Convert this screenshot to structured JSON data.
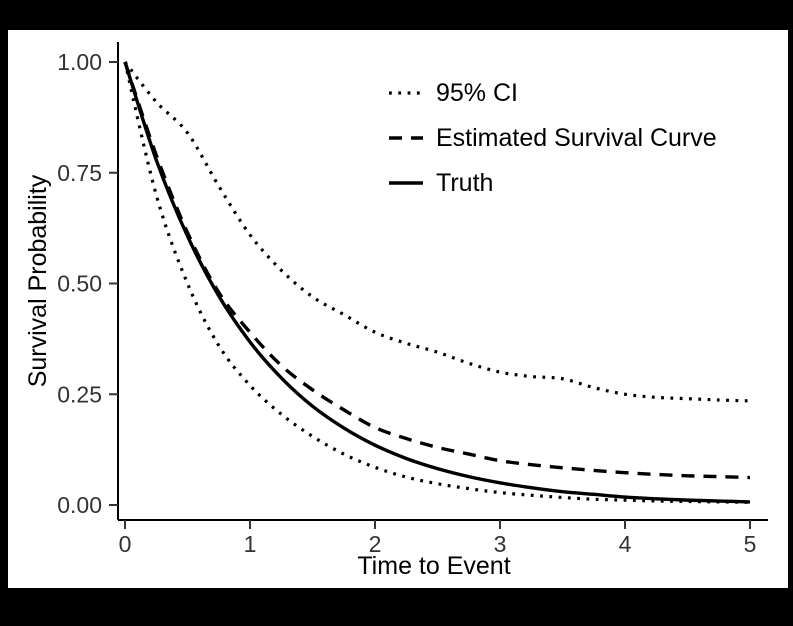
{
  "window": {
    "background": "#000000"
  },
  "chart_data": {
    "type": "line",
    "title": "",
    "xlabel": "Time to Event",
    "ylabel": "Survival Probability",
    "xlim": [
      0,
      5
    ],
    "ylim": [
      0,
      1
    ],
    "grid": false,
    "legend_position": "inside-top-right",
    "line_color": "#000000",
    "axis_text_color": "#333333",
    "x_tick_values": [
      0,
      1,
      2,
      3,
      4,
      5
    ],
    "x_tick_labels": [
      "0",
      "1",
      "2",
      "3",
      "4",
      "5"
    ],
    "y_tick_values": [
      0,
      0.25,
      0.5,
      0.75,
      1
    ],
    "y_tick_labels": [
      "0.00",
      "0.25",
      "0.50",
      "0.75",
      "1.00"
    ],
    "x": [
      0,
      0.25,
      0.5,
      0.75,
      1,
      1.25,
      1.5,
      1.75,
      2,
      2.25,
      2.5,
      2.75,
      3,
      3.25,
      3.5,
      3.75,
      4,
      4.25,
      4.5,
      4.75,
      5
    ],
    "series": [
      {
        "name": "95% CI upper",
        "linetype": "dotted",
        "values": [
          1.0,
          0.91,
          0.84,
          0.72,
          0.61,
          0.53,
          0.47,
          0.43,
          0.39,
          0.365,
          0.345,
          0.32,
          0.3,
          0.29,
          0.285,
          0.265,
          0.25,
          0.243,
          0.24,
          0.237,
          0.235
        ]
      },
      {
        "name": "95% CI lower",
        "linetype": "dotted",
        "values": [
          1.0,
          0.7,
          0.5,
          0.36,
          0.27,
          0.205,
          0.155,
          0.115,
          0.085,
          0.063,
          0.048,
          0.037,
          0.028,
          0.022,
          0.017,
          0.013,
          0.011,
          0.009,
          0.008,
          0.007,
          0.006
        ]
      },
      {
        "name": "Estimated Survival Curve",
        "linetype": "dashed",
        "values": [
          1.0,
          0.79,
          0.615,
          0.48,
          0.39,
          0.315,
          0.26,
          0.215,
          0.175,
          0.15,
          0.13,
          0.115,
          0.1,
          0.091,
          0.084,
          0.078,
          0.073,
          0.069,
          0.066,
          0.064,
          0.062
        ]
      },
      {
        "name": "Truth",
        "linetype": "solid",
        "values": [
          1.0,
          0.779,
          0.607,
          0.472,
          0.368,
          0.287,
          0.223,
          0.174,
          0.135,
          0.105,
          0.082,
          0.064,
          0.05,
          0.039,
          0.03,
          0.024,
          0.018,
          0.014,
          0.011,
          0.009,
          0.007
        ]
      }
    ],
    "legend": [
      {
        "label": "95% CI",
        "linetype": "dotted"
      },
      {
        "label": "Estimated Survival Curve",
        "linetype": "dashed"
      },
      {
        "label": "Truth",
        "linetype": "solid"
      }
    ]
  }
}
